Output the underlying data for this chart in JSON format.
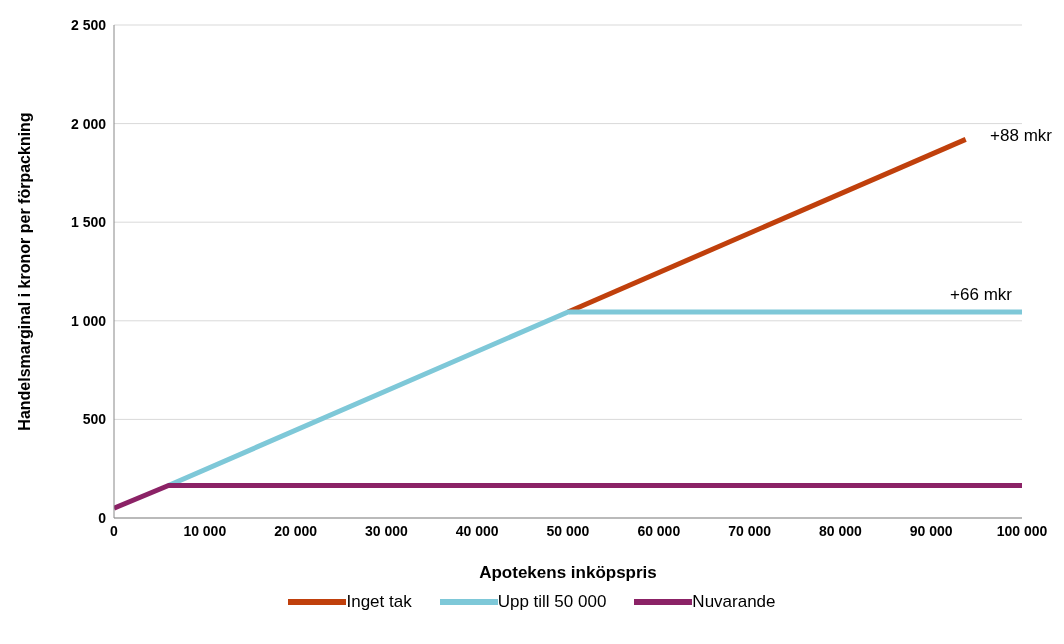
{
  "chart_data": {
    "type": "line",
    "xlabel": "Apotekens inköpspris",
    "ylabel": "Handelsmarginal i kronor per förpackning",
    "series": [
      {
        "name": "Inget tak",
        "color": "#c0400c",
        "x": [
          50000,
          93800
        ],
        "values": [
          1045,
          1920
        ]
      },
      {
        "name": "Upp till 50 000",
        "color": "#7ec8d8",
        "x": [
          6000,
          50000,
          100000
        ],
        "values": [
          165,
          1045,
          1045
        ]
      },
      {
        "name": "Nuvarande",
        "color": "#8b2266",
        "x": [
          0,
          6000,
          100000
        ],
        "values": [
          50,
          165,
          165
        ]
      }
    ],
    "xlim": [
      0,
      100000
    ],
    "xticks": [
      0,
      {
        "value": 10000,
        "label": "10 000"
      },
      {
        "value": 20000,
        "label": "20 000"
      },
      {
        "value": 30000,
        "label": "30 000"
      },
      {
        "value": 40000,
        "label": "40 000"
      },
      {
        "value": 50000,
        "label": "50 000"
      },
      {
        "value": 60000,
        "label": "60 000"
      },
      {
        "value": 70000,
        "label": "70 000"
      },
      {
        "value": 80000,
        "label": "80 000"
      },
      {
        "value": 90000,
        "label": "90 000"
      },
      {
        "value": 100000,
        "label": "100 000"
      }
    ],
    "ylim": [
      0,
      2500
    ],
    "yticks": [
      0,
      500,
      {
        "value": 1000,
        "label": "1 000"
      },
      {
        "value": 1500,
        "label": "1 500"
      },
      {
        "value": 2000,
        "label": "2 000"
      },
      {
        "value": 2500,
        "label": "2 500"
      }
    ],
    "annotations": [
      "+88 mkr",
      "+66 mkr"
    ],
    "grid": "y",
    "legend": "bottom",
    "marker": "none",
    "line_style": "solid"
  }
}
